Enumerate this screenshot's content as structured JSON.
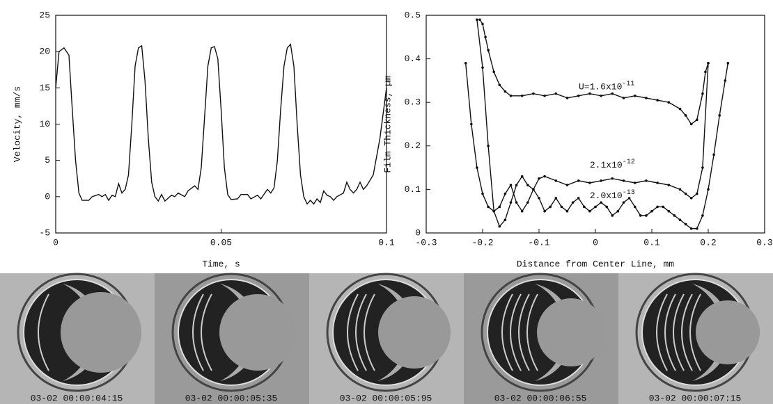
{
  "chart_data": [
    {
      "type": "line",
      "xlabel": "Time, s",
      "ylabel": "Velocity, mm/s",
      "x": [
        0,
        0.001,
        0.0025,
        0.004,
        0.005,
        0.006,
        0.007,
        0.008,
        0.01,
        0.011,
        0.013,
        0.014,
        0.015,
        0.016,
        0.017,
        0.018,
        0.019,
        0.02,
        0.021,
        0.022,
        0.023,
        0.024,
        0.025,
        0.026,
        0.027,
        0.028,
        0.029,
        0.03,
        0.031,
        0.032,
        0.033,
        0.035,
        0.036,
        0.037,
        0.039,
        0.04,
        0.042,
        0.043,
        0.044,
        0.045,
        0.046,
        0.047,
        0.048,
        0.049,
        0.05,
        0.051,
        0.052,
        0.053,
        0.055,
        0.056,
        0.058,
        0.059,
        0.061,
        0.062,
        0.064,
        0.065,
        0.066,
        0.067,
        0.068,
        0.069,
        0.07,
        0.071,
        0.072,
        0.073,
        0.074,
        0.075,
        0.076,
        0.077,
        0.078,
        0.079,
        0.08,
        0.081,
        0.082,
        0.083,
        0.084,
        0.085,
        0.087,
        0.088,
        0.089,
        0.09,
        0.091,
        0.092,
        0.093,
        0.094,
        0.096,
        0.098,
        0.1
      ],
      "values": [
        15,
        20,
        20.5,
        19.5,
        12,
        5,
        0.5,
        -0.5,
        -0.5,
        0,
        0.3,
        0,
        0.3,
        -0.5,
        0.2,
        0,
        1.8,
        0.5,
        1,
        3,
        10,
        18,
        20.5,
        20.8,
        16,
        8,
        2,
        0,
        -0.6,
        0.3,
        -0.6,
        0.2,
        0,
        0.5,
        0,
        0.8,
        1.5,
        1,
        4,
        11,
        18,
        20.5,
        20.7,
        19,
        12,
        4,
        0.3,
        -0.4,
        -0.3,
        0.3,
        0.3,
        -0.3,
        0.2,
        -0.3,
        1,
        0.5,
        1.2,
        5,
        12,
        18,
        20.5,
        21,
        18,
        10,
        3,
        0,
        -1,
        -0.5,
        -1,
        -0.3,
        -0.8,
        0.8,
        0.2,
        0,
        -0.5,
        0,
        0.5,
        2,
        1,
        0.5,
        1,
        2,
        1,
        1.5,
        3,
        8,
        15
      ],
      "color": "#111111",
      "xlim": [
        0,
        0.1
      ],
      "ylim": [
        -5,
        25
      ],
      "xticks": [
        0,
        0.05,
        0.1
      ],
      "yticks": [
        -5,
        0,
        5,
        10,
        15,
        20,
        25
      ]
    },
    {
      "type": "line",
      "markers": true,
      "xlabel": "Distance from Center Line, mm",
      "ylabel": "Film Thickness, µm",
      "xlim": [
        -0.3,
        0.3
      ],
      "ylim": [
        0,
        0.5
      ],
      "xticks": [
        -0.3,
        -0.2,
        -0.1,
        0,
        0.1,
        0.2,
        0.3
      ],
      "yticks": [
        0,
        0.1,
        0.2,
        0.3,
        0.4,
        0.5
      ],
      "series": [
        {
          "color": "#111111",
          "x": [
            -0.205,
            -0.2,
            -0.195,
            -0.19,
            -0.18,
            -0.17,
            -0.16,
            -0.15,
            -0.13,
            -0.11,
            -0.09,
            -0.07,
            -0.05,
            -0.03,
            -0.01,
            0.01,
            0.03,
            0.05,
            0.07,
            0.09,
            0.11,
            0.13,
            0.15,
            0.16,
            0.17,
            0.18,
            0.19,
            0.195,
            0.2
          ],
          "values": [
            0.49,
            0.48,
            0.45,
            0.42,
            0.37,
            0.34,
            0.325,
            0.315,
            0.315,
            0.32,
            0.315,
            0.32,
            0.31,
            0.315,
            0.32,
            0.315,
            0.32,
            0.31,
            0.315,
            0.31,
            0.305,
            0.3,
            0.285,
            0.27,
            0.25,
            0.26,
            0.32,
            0.37,
            0.39
          ]
        },
        {
          "color": "#111111",
          "x": [
            -0.21,
            -0.2,
            -0.19,
            -0.18,
            -0.17,
            -0.16,
            -0.15,
            -0.14,
            -0.13,
            -0.12,
            -0.11,
            -0.1,
            -0.09,
            -0.07,
            -0.05,
            -0.03,
            -0.01,
            0.01,
            0.03,
            0.05,
            0.07,
            0.09,
            0.11,
            0.13,
            0.15,
            0.16,
            0.17,
            0.18,
            0.19,
            0.2
          ],
          "values": [
            0.49,
            0.38,
            0.2,
            0.05,
            0.015,
            0.03,
            0.07,
            0.11,
            0.13,
            0.11,
            0.1,
            0.125,
            0.13,
            0.12,
            0.11,
            0.12,
            0.115,
            0.12,
            0.125,
            0.12,
            0.115,
            0.12,
            0.115,
            0.11,
            0.1,
            0.09,
            0.08,
            0.09,
            0.15,
            0.39
          ]
        },
        {
          "color": "#111111",
          "x": [
            -0.23,
            -0.22,
            -0.21,
            -0.2,
            -0.19,
            -0.18,
            -0.17,
            -0.16,
            -0.15,
            -0.14,
            -0.13,
            -0.12,
            -0.11,
            -0.1,
            -0.09,
            -0.08,
            -0.07,
            -0.06,
            -0.05,
            -0.04,
            -0.03,
            -0.02,
            -0.01,
            0,
            0.01,
            0.02,
            0.03,
            0.04,
            0.05,
            0.06,
            0.07,
            0.08,
            0.09,
            0.1,
            0.11,
            0.12,
            0.13,
            0.14,
            0.15,
            0.16,
            0.17,
            0.18,
            0.19,
            0.2,
            0.21,
            0.22,
            0.23,
            0.235
          ],
          "values": [
            0.39,
            0.25,
            0.15,
            0.09,
            0.06,
            0.05,
            0.06,
            0.09,
            0.11,
            0.07,
            0.05,
            0.07,
            0.1,
            0.08,
            0.05,
            0.06,
            0.08,
            0.06,
            0.05,
            0.07,
            0.08,
            0.06,
            0.05,
            0.06,
            0.07,
            0.06,
            0.04,
            0.05,
            0.07,
            0.08,
            0.06,
            0.04,
            0.04,
            0.05,
            0.06,
            0.06,
            0.05,
            0.04,
            0.03,
            0.02,
            0.01,
            0.01,
            0.04,
            0.1,
            0.18,
            0.27,
            0.35,
            0.39
          ]
        }
      ],
      "annotations": [
        {
          "text": "U=1.6x10",
          "exponent": "-11"
        },
        {
          "text": "2.1x10",
          "exponent": "-12"
        },
        {
          "text": "2.0x10",
          "exponent": "-13"
        }
      ]
    }
  ],
  "photos": [
    {
      "caption": "03-02 00:00:04:15"
    },
    {
      "caption": "03-02 00:00:05:35"
    },
    {
      "caption": "03-02 00:00:05:95"
    },
    {
      "caption": "03-02 00:00:06:55"
    },
    {
      "caption": "03-02 00:00:07:15"
    }
  ]
}
